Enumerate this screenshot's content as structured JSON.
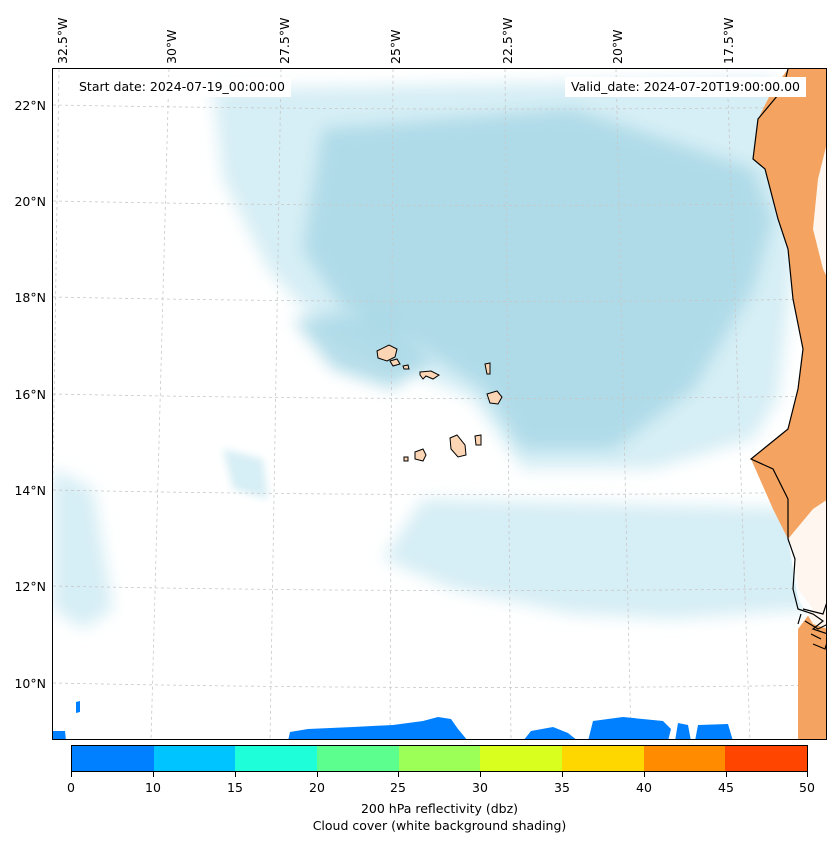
{
  "map": {
    "start_date": "Start date: 2024-07-19_00:00:00",
    "valid_date": "Valid_date: 2024-07-20T19:00:00.00",
    "lon_labels": [
      "32.5°W",
      "30°W",
      "27.5°W",
      "25°W",
      "22.5°W",
      "20°W",
      "17.5°W"
    ],
    "lat_labels": [
      "22°N",
      "20°N",
      "18°N",
      "16°N",
      "14°N",
      "12°N",
      "10°N"
    ],
    "colors": {
      "cloud": "#a9d8e6",
      "cloud_light": "#d6eef5",
      "land_orange": "#f4a460",
      "island_fill": "#fcd5b5",
      "coastline": "#000000"
    }
  },
  "colorbar": {
    "ticks": [
      "0",
      "10",
      "15",
      "20",
      "25",
      "30",
      "35",
      "40",
      "45",
      "50"
    ],
    "colors": [
      "#0080ff",
      "#00c4ff",
      "#1effd9",
      "#5cff8e",
      "#9cff58",
      "#d8ff1e",
      "#ffd700",
      "#ff8c00",
      "#ff4500"
    ],
    "label": "200 hPa reflectivity (dbz)",
    "sublabel": "Cloud cover (white background shading)"
  }
}
